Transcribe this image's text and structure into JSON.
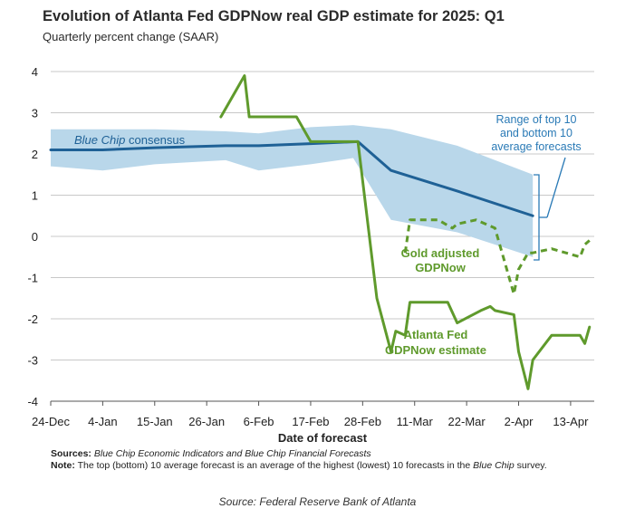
{
  "chart_data": {
    "type": "line",
    "title": "Evolution of Atlanta Fed GDPNow real GDP estimate for 2025: Q1",
    "subtitle": "Quarterly percent change (SAAR)",
    "xlabel": "Date of forecast",
    "ylabel": "",
    "ylim": [
      -4,
      4
    ],
    "yticks": [
      4,
      3,
      2,
      1,
      0,
      -1,
      -2,
      -3,
      -4
    ],
    "xlim": [
      "2024-12-24",
      "2025-04-18"
    ],
    "xticks": [
      {
        "date": "2024-12-24",
        "label": "24-Dec"
      },
      {
        "date": "2025-01-04",
        "label": "4-Jan"
      },
      {
        "date": "2025-01-15",
        "label": "15-Jan"
      },
      {
        "date": "2025-01-26",
        "label": "26-Jan"
      },
      {
        "date": "2025-02-06",
        "label": "6-Feb"
      },
      {
        "date": "2025-02-17",
        "label": "17-Feb"
      },
      {
        "date": "2025-02-28",
        "label": "28-Feb"
      },
      {
        "date": "2025-03-11",
        "label": "11-Mar"
      },
      {
        "date": "2025-03-22",
        "label": "22-Mar"
      },
      {
        "date": "2025-04-02",
        "label": "2-Apr"
      },
      {
        "date": "2025-04-13",
        "label": "13-Apr"
      }
    ],
    "grid": "horizontal",
    "colors": {
      "band": "#b9d7ea",
      "consensus": "#1f6196",
      "gdpnow": "#5f9a2c",
      "grid": "#c8c8c8",
      "callout": "#2a7ab6"
    },
    "band": {
      "dates": [
        "2024-12-24",
        "2025-01-04",
        "2025-01-15",
        "2025-01-30",
        "2025-02-06",
        "2025-02-17",
        "2025-02-26",
        "2025-03-06",
        "2025-03-20",
        "2025-04-05"
      ],
      "upper": [
        2.6,
        2.6,
        2.6,
        2.55,
        2.5,
        2.65,
        2.7,
        2.6,
        2.2,
        1.5
      ],
      "lower": [
        1.7,
        1.6,
        1.75,
        1.85,
        1.6,
        1.75,
        1.9,
        0.4,
        0.1,
        -0.5
      ]
    },
    "series": [
      {
        "name": "Blue Chip consensus",
        "dates": [
          "2024-12-24",
          "2025-01-04",
          "2025-01-15",
          "2025-01-30",
          "2025-02-06",
          "2025-02-17",
          "2025-02-27",
          "2025-03-06",
          "2025-03-20",
          "2025-04-05"
        ],
        "values": [
          2.1,
          2.1,
          2.15,
          2.2,
          2.2,
          2.25,
          2.3,
          1.6,
          1.1,
          0.5
        ]
      },
      {
        "name": "Atlanta Fed GDPNow estimate",
        "dates": [
          "2025-01-29",
          "2025-02-03",
          "2025-02-04",
          "2025-02-07",
          "2025-02-10",
          "2025-02-14",
          "2025-02-17",
          "2025-02-19",
          "2025-02-27",
          "2025-03-03",
          "2025-03-06",
          "2025-03-07",
          "2025-03-09",
          "2025-03-10",
          "2025-03-18",
          "2025-03-20",
          "2025-03-25",
          "2025-03-27",
          "2025-03-28",
          "2025-04-01",
          "2025-04-02",
          "2025-04-04",
          "2025-04-05",
          "2025-04-09",
          "2025-04-15",
          "2025-04-16",
          "2025-04-17"
        ],
        "values": [
          2.9,
          3.9,
          2.9,
          2.9,
          2.9,
          2.9,
          2.3,
          2.3,
          2.3,
          -1.5,
          -2.8,
          -2.3,
          -2.4,
          -1.6,
          -1.6,
          -2.1,
          -1.8,
          -1.7,
          -1.8,
          -1.9,
          -2.8,
          -3.7,
          -3.0,
          -2.4,
          -2.4,
          -2.6,
          -2.2
        ]
      },
      {
        "name": "Gold adjusted GDPNow",
        "dashed": true,
        "dates": [
          "2025-03-09",
          "2025-03-10",
          "2025-03-16",
          "2025-03-19",
          "2025-03-20",
          "2025-03-24",
          "2025-03-28",
          "2025-04-01",
          "2025-04-02",
          "2025-04-04",
          "2025-04-05",
          "2025-04-09",
          "2025-04-15",
          "2025-04-16",
          "2025-04-17"
        ],
        "values": [
          -0.4,
          0.4,
          0.4,
          0.2,
          0.3,
          0.4,
          0.2,
          -1.4,
          -0.8,
          -0.4,
          -0.4,
          -0.3,
          -0.5,
          -0.2,
          -0.1
        ]
      }
    ],
    "annotations": {
      "consensus_label": "Blue Chip consensus",
      "consensus_label_italic": "Blue Chip",
      "gdpnow_label": [
        "Atlanta Fed",
        "GDPNow estimate"
      ],
      "gold_label": [
        "Gold adjusted",
        "GDPNow"
      ],
      "range_label": [
        "Range of top 10",
        "and bottom 10",
        "average forecasts"
      ]
    }
  },
  "notes": {
    "sources_label": "Sources:",
    "sources_text": "Blue Chip Economic Indicators and Blue Chip Financial Forecasts",
    "note_label": "Note:",
    "note_text_1": "The top (bottom) 10 average forecast is an average of the highest (lowest) 10 forecasts in the",
    "note_text_italic": "Blue Chip",
    "note_text_2": "survey."
  },
  "source_line": "Source: Federal Reserve Bank of Atlanta"
}
